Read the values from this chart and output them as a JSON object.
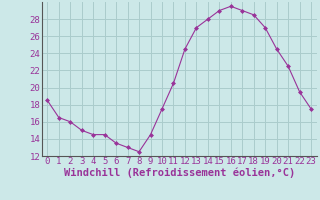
{
  "x": [
    0,
    1,
    2,
    3,
    4,
    5,
    6,
    7,
    8,
    9,
    10,
    11,
    12,
    13,
    14,
    15,
    16,
    17,
    18,
    19,
    20,
    21,
    22,
    23
  ],
  "y": [
    18.5,
    16.5,
    16.0,
    15.0,
    14.5,
    14.5,
    13.5,
    13.0,
    12.5,
    14.5,
    17.5,
    20.5,
    24.5,
    27.0,
    28.0,
    29.0,
    29.5,
    29.0,
    28.5,
    27.0,
    24.5,
    22.5,
    19.5,
    17.5
  ],
  "line_color": "#993399",
  "marker": "D",
  "marker_size": 2,
  "bg_color": "#cce8e8",
  "grid_color": "#aacccc",
  "xlabel": "Windchill (Refroidissement éolien,°C)",
  "xlabel_color": "#993399",
  "xlabel_fontsize": 7.5,
  "tick_color": "#993399",
  "tick_fontsize": 6.5,
  "ylim": [
    12,
    30
  ],
  "xlim": [
    -0.5,
    23.5
  ],
  "yticks": [
    12,
    14,
    16,
    18,
    20,
    22,
    24,
    26,
    28
  ],
  "xticks": [
    0,
    1,
    2,
    3,
    4,
    5,
    6,
    7,
    8,
    9,
    10,
    11,
    12,
    13,
    14,
    15,
    16,
    17,
    18,
    19,
    20,
    21,
    22,
    23
  ]
}
